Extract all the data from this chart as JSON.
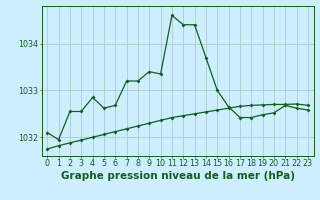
{
  "title": "Graphe pression niveau de la mer (hPa)",
  "background_color": "#cceeff",
  "grid_color": "#aacccc",
  "line_color": "#1a5c1a",
  "x_labels": [
    "0",
    "1",
    "2",
    "3",
    "4",
    "5",
    "6",
    "7",
    "8",
    "9",
    "10",
    "11",
    "12",
    "13",
    "14",
    "15",
    "16",
    "17",
    "18",
    "19",
    "20",
    "21",
    "22",
    "23"
  ],
  "ylim": [
    1031.6,
    1034.8
  ],
  "yticks": [
    1032,
    1033,
    1034
  ],
  "series1": [
    1032.1,
    1031.95,
    1032.55,
    1032.55,
    1032.85,
    1032.62,
    1032.68,
    1033.2,
    1033.2,
    1033.4,
    1033.35,
    1034.6,
    1034.4,
    1034.4,
    1033.7,
    1033.0,
    1032.65,
    1032.42,
    1032.42,
    1032.48,
    1032.52,
    1032.68,
    1032.62,
    1032.58
  ],
  "series2": [
    1031.75,
    1031.82,
    1031.88,
    1031.94,
    1032.0,
    1032.06,
    1032.12,
    1032.18,
    1032.24,
    1032.3,
    1032.36,
    1032.42,
    1032.46,
    1032.5,
    1032.54,
    1032.58,
    1032.62,
    1032.66,
    1032.68,
    1032.69,
    1032.7,
    1032.7,
    1032.71,
    1032.68
  ],
  "title_fontsize": 7.5,
  "tick_fontsize": 5.8
}
